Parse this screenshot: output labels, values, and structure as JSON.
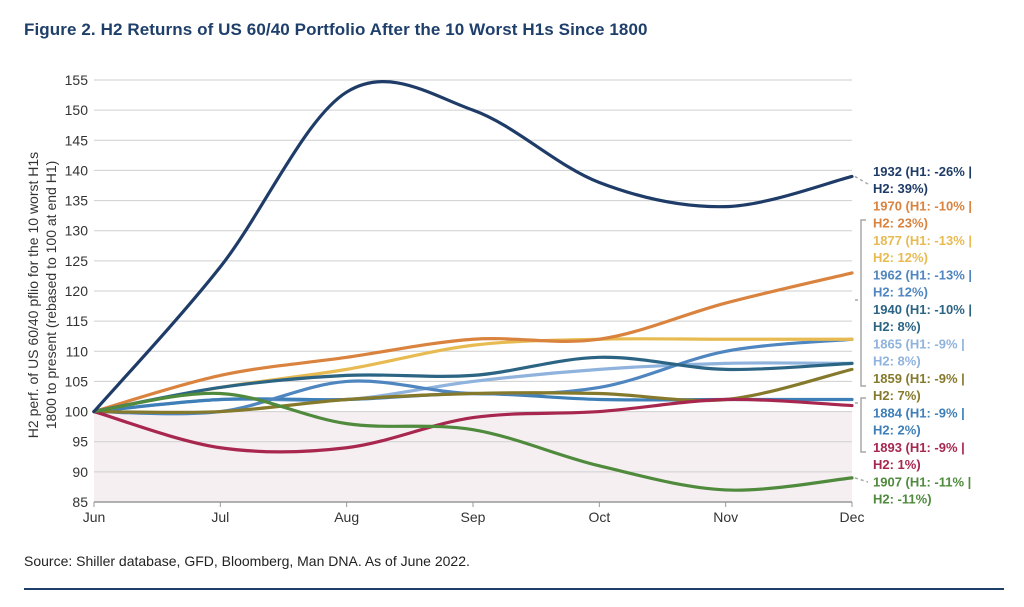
{
  "header": {
    "title": "Figure 2. H2 Returns of US 60/40 Portfolio After the 10 Worst H1s Since 1800"
  },
  "footer": {
    "source": "Source: Shiller database, GFD, Bloomberg, Man DNA. As of June 2022."
  },
  "chart_data": {
    "type": "line",
    "title": "Figure 2. H2 Returns of US 60/40 Portfolio After the 10 Worst H1s Since 1800",
    "ylabel_lines": [
      "H2 perf. of US 60/40 pflio for the 10 worst H1s",
      "1800 to present (rebased to 100 at end H1)"
    ],
    "xlabel": "",
    "categories": [
      "Jun",
      "Jul",
      "Aug",
      "Sep",
      "Oct",
      "Nov",
      "Dec"
    ],
    "ylim": [
      85,
      155
    ],
    "yticks": [
      85,
      90,
      95,
      100,
      105,
      110,
      115,
      120,
      125,
      130,
      135,
      140,
      145,
      150,
      155
    ],
    "grid": "horizontal",
    "legend": "right",
    "shaded_below": 100,
    "series": [
      {
        "name": "1865",
        "label": [
          "1865 (H1: -9% |",
          "H2: 8%)"
        ],
        "color": "#8fb3dc",
        "values": [
          100,
          102,
          102,
          105,
          107,
          108,
          108
        ]
      },
      {
        "name": "1884",
        "label": [
          "1884 (H1: -9% |",
          "H2: 2%)"
        ],
        "color": "#3f7fb8",
        "values": [
          100,
          102,
          102,
          103,
          102,
          102,
          102
        ]
      },
      {
        "name": "1962",
        "label": [
          "1962 (H1: -13% |",
          "H2: 12%)"
        ],
        "color": "#4f86c0",
        "values": [
          100,
          100,
          105,
          103,
          104,
          110,
          112
        ]
      },
      {
        "name": "1877",
        "label": [
          "1877 (H1: -13% |",
          "H2: 12%)"
        ],
        "color": "#e7bb52",
        "values": [
          100,
          104,
          107,
          111,
          112,
          112,
          112
        ]
      },
      {
        "name": "1970",
        "label": [
          "1970 (H1: -10% |",
          "H2: 23%)"
        ],
        "color": "#d9833f",
        "values": [
          100,
          106,
          109,
          112,
          112,
          118,
          123
        ]
      },
      {
        "name": "1940",
        "label": [
          "1940 (H1: -10% |",
          "H2: 8%)"
        ],
        "color": "#2c6484",
        "values": [
          100,
          104,
          106,
          106,
          109,
          107,
          108
        ]
      },
      {
        "name": "1859",
        "label": [
          "1859 (H1: -9% |",
          "H2: 7%)"
        ],
        "color": "#857a2c",
        "values": [
          100,
          100,
          102,
          103,
          103,
          102,
          107
        ]
      },
      {
        "name": "1893",
        "label": [
          "1893 (H1: -9% |",
          "H2: 1%)"
        ],
        "color": "#a8274f",
        "values": [
          100,
          94,
          94,
          99,
          100,
          102,
          101
        ]
      },
      {
        "name": "1907",
        "label": [
          "1907 (H1: -11% |",
          "H2: -11%)"
        ],
        "color": "#4f8a3d",
        "values": [
          100,
          103,
          98,
          97,
          91,
          87,
          89
        ]
      },
      {
        "name": "1932",
        "label": [
          "1932 (H1: -26% |",
          "H2: 39%)"
        ],
        "color": "#1f3c68",
        "values": [
          100,
          124,
          153,
          150,
          138,
          134,
          139
        ]
      }
    ],
    "label_order": [
      "1932",
      "1970",
      "1877",
      "1962",
      "1940",
      "1865",
      "1859",
      "1884",
      "1893",
      "1907"
    ]
  }
}
